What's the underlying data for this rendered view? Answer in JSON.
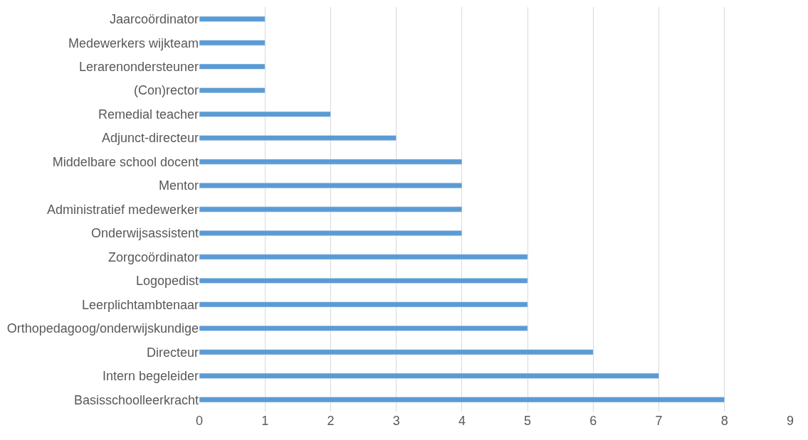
{
  "chart_data": {
    "type": "bar",
    "orientation": "horizontal",
    "categories": [
      "Jaarcoördinator",
      "Medewerkers wijkteam",
      "Lerarenondersteuner",
      "(Con)rector",
      "Remedial teacher",
      "Adjunct-directeur",
      "Middelbare school docent",
      "Mentor",
      "Administratief medewerker",
      "Onderwijsassistent",
      "Zorgcoördinator",
      "Logopedist",
      "Leerplichtambtenaar",
      "Orthopedagoog/onderwijskundige",
      "Directeur",
      "Intern begeleider",
      "Basisschoolleerkracht"
    ],
    "values": [
      1,
      1,
      1,
      1,
      2,
      3,
      4,
      4,
      4,
      4,
      5,
      5,
      5,
      5,
      6,
      7,
      8
    ],
    "color": "#5b9bd5",
    "xlim": [
      0,
      9
    ],
    "xticks": [
      0,
      1,
      2,
      3,
      4,
      5,
      6,
      7,
      8,
      9
    ],
    "grid": "x"
  }
}
